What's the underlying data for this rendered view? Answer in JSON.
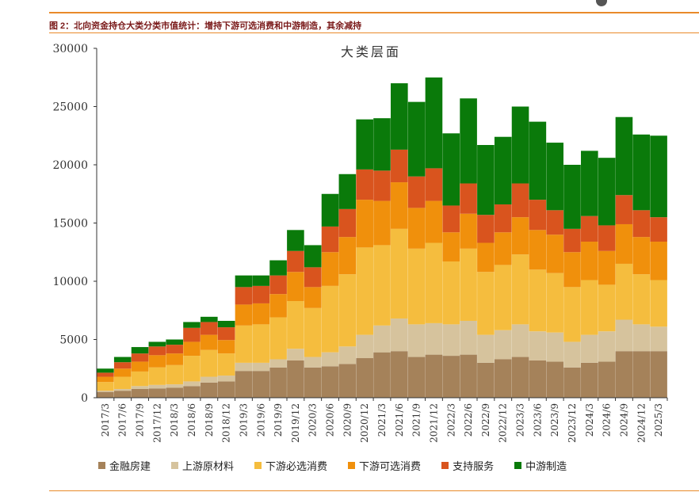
{
  "header": {
    "caption": "图 2：北向资金持仓大类分类市值统计：增持下游可选消费和中游制造，其余减持"
  },
  "chart_data": {
    "type": "bar",
    "stacked": true,
    "title": "大类层面",
    "xlabel": "",
    "ylabel": "",
    "ylim": [
      0,
      30000
    ],
    "yticks": [
      0,
      5000,
      10000,
      15000,
      20000,
      25000,
      30000
    ],
    "grid": false,
    "legend_position": "bottom",
    "categories": [
      "2017/3",
      "2017/6",
      "2017/9",
      "2017/12",
      "2018/3",
      "2018/6",
      "2018/9",
      "2018/12",
      "2019/3",
      "2019/6",
      "2019/9",
      "2019/12",
      "2020/3",
      "2020/6",
      "2020/9",
      "2020/12",
      "2021/3",
      "2021/6",
      "2021/9",
      "2021/12",
      "2022/3",
      "2022/6",
      "2022/9",
      "2022/12",
      "2023/3",
      "2023/6",
      "2023/9",
      "2023/12",
      "2024/3",
      "2024/6",
      "2024/9",
      "2024/12",
      "2025/3"
    ],
    "series": [
      {
        "name": "金融房建",
        "color": "#a5825a",
        "values": [
          500,
          600,
          750,
          800,
          850,
          1000,
          1300,
          1400,
          2300,
          2300,
          2600,
          3200,
          2600,
          2700,
          2900,
          3400,
          3900,
          4000,
          3500,
          3700,
          3600,
          3700,
          3000,
          3300,
          3500,
          3200,
          3100,
          2600,
          3000,
          3100,
          4000,
          4000,
          4000
        ]
      },
      {
        "name": "上游原材料",
        "color": "#d6c39d",
        "values": [
          100,
          150,
          250,
          300,
          300,
          400,
          500,
          500,
          700,
          700,
          700,
          1000,
          900,
          1200,
          1500,
          2000,
          2300,
          2800,
          2800,
          2700,
          2700,
          2900,
          2400,
          2500,
          2800,
          2500,
          2500,
          2200,
          2400,
          2600,
          2700,
          2300,
          2100
        ]
      },
      {
        "name": "下游必选消费",
        "color": "#f5bd3e",
        "values": [
          750,
          1050,
          1250,
          1500,
          1650,
          2200,
          2300,
          1900,
          3200,
          3300,
          3600,
          4100,
          4200,
          5700,
          6200,
          7500,
          6900,
          7700,
          6500,
          6900,
          5400,
          6200,
          5400,
          5600,
          6000,
          5300,
          5100,
          4700,
          4700,
          4000,
          4800,
          4300,
          4000
        ]
      },
      {
        "name": "下游可选消费",
        "color": "#f0900c",
        "values": [
          450,
          700,
          850,
          1050,
          1000,
          1200,
          1300,
          1150,
          1800,
          1800,
          2000,
          2500,
          1800,
          2900,
          3200,
          4100,
          3800,
          4000,
          3500,
          3600,
          2500,
          3000,
          2500,
          2800,
          3200,
          3400,
          3300,
          3000,
          3300,
          2900,
          3400,
          3200,
          3300
        ]
      },
      {
        "name": "支持服务",
        "color": "#d9541e",
        "values": [
          350,
          550,
          700,
          750,
          750,
          1200,
          1100,
          1100,
          1500,
          1500,
          1600,
          1800,
          1700,
          2200,
          2400,
          2600,
          2600,
          2800,
          2700,
          2800,
          2300,
          2600,
          2400,
          2400,
          2900,
          2600,
          2100,
          2000,
          2200,
          2200,
          2500,
          2300,
          2100
        ]
      },
      {
        "name": "中游制造",
        "color": "#0a7a0a",
        "values": [
          350,
          450,
          550,
          400,
          450,
          500,
          450,
          550,
          1000,
          900,
          1300,
          1800,
          1900,
          2800,
          3000,
          4300,
          4500,
          5700,
          6400,
          7800,
          6200,
          7300,
          6000,
          5800,
          6600,
          6700,
          5800,
          5500,
          5600,
          5800,
          6700,
          6500,
          7000
        ]
      }
    ]
  }
}
